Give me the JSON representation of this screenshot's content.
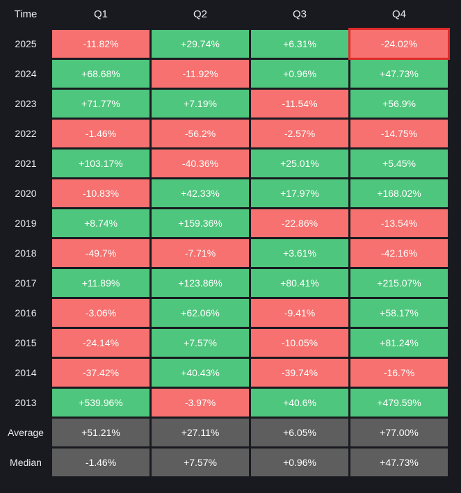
{
  "table": {
    "header": [
      "Time",
      "Q1",
      "Q2",
      "Q3",
      "Q4"
    ],
    "rows": [
      [
        "2025",
        "-11.82%",
        "+29.74%",
        "+6.31%",
        "-24.02%"
      ],
      [
        "2024",
        "+68.68%",
        "-11.92%",
        "+0.96%",
        "+47.73%"
      ],
      [
        "2023",
        "+71.77%",
        "+7.19%",
        "-11.54%",
        "+56.9%"
      ],
      [
        "2022",
        "-1.46%",
        "-56.2%",
        "-2.57%",
        "-14.75%"
      ],
      [
        "2021",
        "+103.17%",
        "-40.36%",
        "+25.01%",
        "+5.45%"
      ],
      [
        "2020",
        "-10.83%",
        "+42.33%",
        "+17.97%",
        "+168.02%"
      ],
      [
        "2019",
        "+8.74%",
        "+159.36%",
        "-22.86%",
        "-13.54%"
      ],
      [
        "2018",
        "-49.7%",
        "-7.71%",
        "+3.61%",
        "-42.16%"
      ],
      [
        "2017",
        "+11.89%",
        "+123.86%",
        "+80.41%",
        "+215.07%"
      ],
      [
        "2016",
        "-3.06%",
        "+62.06%",
        "-9.41%",
        "+58.17%"
      ],
      [
        "2015",
        "-24.14%",
        "+7.57%",
        "-10.05%",
        "+81.24%"
      ],
      [
        "2014",
        "-37.42%",
        "+40.43%",
        "-39.74%",
        "-16.7%"
      ],
      [
        "2013",
        "+539.96%",
        "-3.97%",
        "+40.6%",
        "+479.59%"
      ]
    ],
    "summary_rows": [
      [
        "Average",
        "+51.21%",
        "+27.11%",
        "+6.05%",
        "+77.00%"
      ],
      [
        "Median",
        "-1.46%",
        "+7.57%",
        "+0.96%",
        "+47.73%"
      ]
    ]
  }
}
